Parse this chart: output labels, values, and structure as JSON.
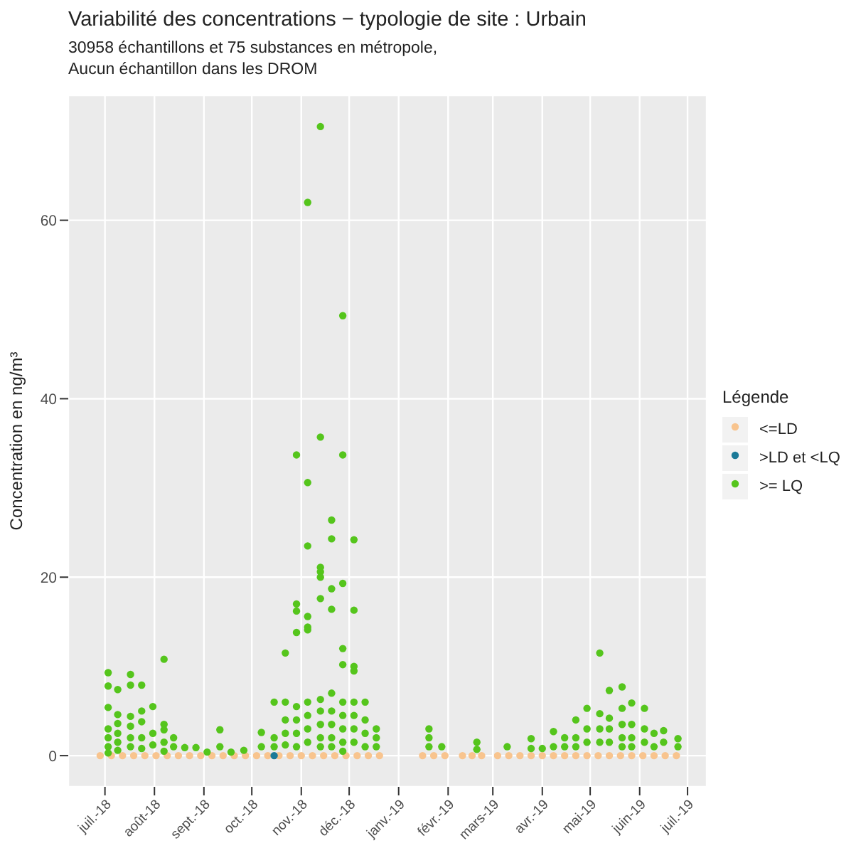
{
  "chart_data": {
    "type": "scatter",
    "title": "Variabilité des concentrations − typologie de site : Urbain",
    "subtitle": "30958 échantillons et 75 substances en métropole,\nAucun échantillon dans les DROM",
    "ylabel": "Concentration en ng/m³",
    "legend_title": "Légende",
    "legend": "right",
    "grid": true,
    "marker": "circle",
    "xlim": [
      "2018-06-08",
      "2019-07-13"
    ],
    "xticks": [
      {
        "value": "2018-07-01",
        "label": "juil.-18"
      },
      {
        "value": "2018-08-01",
        "label": "août-18"
      },
      {
        "value": "2018-09-01",
        "label": "sept.-18"
      },
      {
        "value": "2018-10-01",
        "label": "oct.-18"
      },
      {
        "value": "2018-11-01",
        "label": "nov.-18"
      },
      {
        "value": "2018-12-01",
        "label": "déc.-18"
      },
      {
        "value": "2019-01-01",
        "label": "janv.-19"
      },
      {
        "value": "2019-02-01",
        "label": "févr.-19"
      },
      {
        "value": "2019-03-01",
        "label": "mars-19"
      },
      {
        "value": "2019-04-01",
        "label": "avr.-19"
      },
      {
        "value": "2019-05-01",
        "label": "mai-19"
      },
      {
        "value": "2019-06-01",
        "label": "juin-19"
      },
      {
        "value": "2019-07-01",
        "label": "juil.-19"
      }
    ],
    "ylim": [
      -3.5,
      74
    ],
    "yticks": [
      0,
      20,
      40,
      60
    ],
    "series": [
      {
        "name": "<=LD",
        "color": "#f8c48e",
        "x": [
          "2018-06-28",
          "2018-07-05",
          "2018-07-12",
          "2018-07-19",
          "2018-07-26",
          "2018-08-02",
          "2018-08-09",
          "2018-08-16",
          "2018-08-23",
          "2018-08-30",
          "2018-09-06",
          "2018-09-13",
          "2018-09-20",
          "2018-09-27",
          "2018-10-04",
          "2018-10-11",
          "2018-10-18",
          "2018-10-25",
          "2018-11-01",
          "2018-11-08",
          "2018-11-15",
          "2018-11-22",
          "2018-11-29",
          "2018-12-06",
          "2018-12-13",
          "2018-12-20",
          "2019-01-16",
          "2019-01-23",
          "2019-01-30",
          "2019-02-10",
          "2019-02-16",
          "2019-02-22",
          "2019-03-04",
          "2019-03-11",
          "2019-03-18",
          "2019-03-25",
          "2019-04-01",
          "2019-04-08",
          "2019-04-15",
          "2019-04-22",
          "2019-04-29",
          "2019-05-06",
          "2019-05-13",
          "2019-05-20",
          "2019-05-27",
          "2019-06-03",
          "2019-06-10",
          "2019-06-17",
          "2019-06-24"
        ],
        "values": [
          0,
          0,
          0,
          0,
          0,
          0,
          0,
          0,
          0,
          0,
          0,
          0,
          0,
          0,
          0,
          0,
          0,
          0,
          0,
          0,
          0,
          0,
          0,
          0,
          0,
          0,
          0,
          0,
          0,
          0,
          0,
          0,
          0,
          0,
          0,
          0,
          0,
          0,
          0,
          0,
          0,
          0,
          0,
          0,
          0,
          0,
          0,
          0,
          0
        ]
      },
      {
        "name": ">LD et <LQ",
        "color": "#1b7a98",
        "x": [
          "2018-10-15"
        ],
        "values": [
          0
        ]
      },
      {
        "name": ">= LQ",
        "color": "#55c51c",
        "x": [
          "2018-07-03",
          "2018-07-03",
          "2018-07-03",
          "2018-07-03",
          "2018-07-03",
          "2018-07-03",
          "2018-07-03",
          "2018-07-09",
          "2018-07-09",
          "2018-07-09",
          "2018-07-09",
          "2018-07-09",
          "2018-07-09",
          "2018-07-17",
          "2018-07-17",
          "2018-07-17",
          "2018-07-17",
          "2018-07-17",
          "2018-07-17",
          "2018-07-24",
          "2018-07-24",
          "2018-07-24",
          "2018-07-24",
          "2018-07-24",
          "2018-07-31",
          "2018-07-31",
          "2018-07-31",
          "2018-08-07",
          "2018-08-07",
          "2018-08-07",
          "2018-08-07",
          "2018-08-07",
          "2018-08-13",
          "2018-08-13",
          "2018-08-20",
          "2018-08-27",
          "2018-09-03",
          "2018-09-11",
          "2018-09-11",
          "2018-09-18",
          "2018-09-26",
          "2018-10-07",
          "2018-10-07",
          "2018-10-15",
          "2018-10-15",
          "2018-10-15",
          "2018-10-22",
          "2018-10-22",
          "2018-10-22",
          "2018-10-22",
          "2018-10-22",
          "2018-10-29",
          "2018-10-29",
          "2018-10-29",
          "2018-10-29",
          "2018-10-29",
          "2018-10-29",
          "2018-10-29",
          "2018-10-29",
          "2018-11-05",
          "2018-11-05",
          "2018-11-05",
          "2018-11-05",
          "2018-11-05",
          "2018-11-05",
          "2018-11-05",
          "2018-11-05",
          "2018-11-05",
          "2018-11-05",
          "2018-11-13",
          "2018-11-13",
          "2018-11-13",
          "2018-11-13",
          "2018-11-13",
          "2018-11-13",
          "2018-11-13",
          "2018-11-13",
          "2018-11-13",
          "2018-11-13",
          "2018-11-13",
          "2018-11-20",
          "2018-11-20",
          "2018-11-20",
          "2018-11-20",
          "2018-11-20",
          "2018-11-20",
          "2018-11-20",
          "2018-11-20",
          "2018-11-20",
          "2018-11-27",
          "2018-11-27",
          "2018-11-27",
          "2018-11-27",
          "2018-11-27",
          "2018-11-27",
          "2018-11-27",
          "2018-11-27",
          "2018-11-27",
          "2018-11-27",
          "2018-12-04",
          "2018-12-04",
          "2018-12-04",
          "2018-12-04",
          "2018-12-04",
          "2018-12-04",
          "2018-12-04",
          "2018-12-04",
          "2018-12-11",
          "2018-12-11",
          "2018-12-11",
          "2018-12-11",
          "2018-12-18",
          "2018-12-18",
          "2018-12-18",
          "2019-01-20",
          "2019-01-20",
          "2019-01-20",
          "2019-01-28",
          "2019-02-19",
          "2019-02-19",
          "2019-03-10",
          "2019-03-25",
          "2019-03-25",
          "2019-04-01",
          "2019-04-08",
          "2019-04-08",
          "2019-04-15",
          "2019-04-15",
          "2019-04-22",
          "2019-04-22",
          "2019-04-22",
          "2019-04-29",
          "2019-04-29",
          "2019-04-29",
          "2019-05-07",
          "2019-05-07",
          "2019-05-07",
          "2019-05-07",
          "2019-05-13",
          "2019-05-13",
          "2019-05-13",
          "2019-05-13",
          "2019-05-21",
          "2019-05-21",
          "2019-05-21",
          "2019-05-21",
          "2019-05-21",
          "2019-05-27",
          "2019-05-27",
          "2019-05-27",
          "2019-05-27",
          "2019-06-04",
          "2019-06-04",
          "2019-06-04",
          "2019-06-10",
          "2019-06-10",
          "2019-06-16",
          "2019-06-16",
          "2019-06-25",
          "2019-06-25"
        ],
        "values": [
          9.3,
          7.8,
          5.4,
          3.0,
          2.0,
          1.0,
          0.3,
          7.4,
          4.6,
          3.6,
          2.5,
          1.5,
          0.6,
          9.1,
          7.9,
          4.4,
          3.3,
          2.0,
          1.0,
          7.9,
          5.0,
          3.8,
          2.0,
          0.8,
          5.5,
          2.5,
          1.2,
          10.8,
          3.5,
          2.9,
          1.5,
          0.5,
          2.0,
          1.0,
          0.9,
          0.9,
          0.4,
          2.9,
          1.0,
          0.4,
          0.6,
          2.6,
          1.0,
          6.0,
          2.0,
          1.0,
          11.5,
          6.0,
          4.0,
          2.5,
          1.2,
          33.7,
          17.0,
          16.2,
          13.8,
          5.5,
          4.0,
          2.5,
          1.0,
          62.0,
          30.6,
          23.5,
          15.6,
          14.4,
          14.1,
          6.0,
          4.5,
          3.0,
          1.5,
          70.5,
          35.7,
          21.1,
          20.6,
          20.0,
          17.6,
          6.3,
          5.0,
          3.5,
          2.0,
          1.0,
          26.4,
          24.3,
          18.7,
          16.4,
          7.0,
          5.0,
          3.5,
          2.0,
          1.0,
          49.3,
          33.7,
          19.3,
          12.0,
          10.2,
          6.0,
          4.5,
          3.0,
          1.5,
          0.5,
          24.2,
          16.3,
          10.0,
          9.5,
          6.0,
          4.5,
          3.0,
          1.5,
          6.0,
          4.0,
          2.5,
          1.0,
          3.0,
          2.0,
          1.0,
          3.0,
          2.0,
          1.0,
          1.0,
          1.5,
          0.7,
          1.0,
          1.9,
          0.8,
          0.8,
          2.7,
          1.0,
          2.0,
          1.0,
          4.0,
          2.0,
          1.0,
          5.3,
          3.0,
          1.5,
          11.5,
          4.7,
          3.0,
          1.5,
          7.3,
          4.2,
          3.0,
          1.5,
          7.7,
          5.3,
          3.5,
          2.0,
          1.0,
          5.9,
          3.5,
          2.0,
          1.0,
          5.3,
          3.0,
          1.5,
          2.5,
          1.0,
          2.8,
          1.5,
          1.9,
          1.0
        ]
      }
    ]
  }
}
